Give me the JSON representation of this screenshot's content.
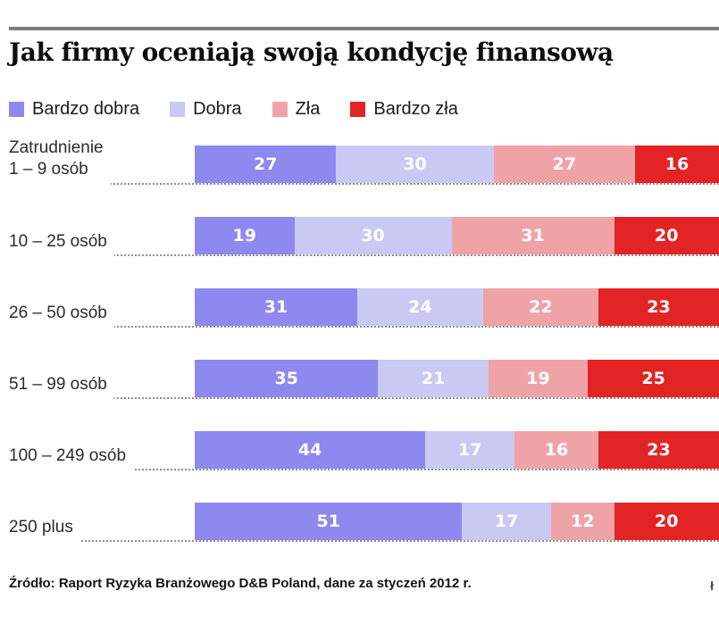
{
  "page": {
    "title": "Jak firmy oceniają swoją kondycję finansową",
    "source": "Źródło: Raport Ryzyka Branżowego D&B Poland, dane za styczeń 2012 r.",
    "watermark": "ł"
  },
  "chart_data": {
    "type": "bar",
    "orientation": "horizontal-stacked",
    "title": "Jak firmy oceniają swoją kondycję finansową",
    "legend_position": "top",
    "xlim": [
      0,
      100
    ],
    "grid": false,
    "categories": [
      "Zatrudnienie 1 – 9 osób",
      "10 – 25 osób",
      "26 – 50 osób",
      "51 – 99 osób",
      "100 – 249 osób",
      "250 plus"
    ],
    "category_lines": [
      [
        "Zatrudnienie",
        "1 – 9 osób"
      ],
      [
        "10 – 25 osób"
      ],
      [
        "26 – 50 osób"
      ],
      [
        "51 – 99 osób"
      ],
      [
        "100 – 249 osób"
      ],
      [
        "250 plus"
      ]
    ],
    "series": [
      {
        "name": "Bardzo dobra",
        "color": "#8f88ef",
        "values": [
          27,
          19,
          31,
          35,
          44,
          51
        ]
      },
      {
        "name": "Dobra",
        "color": "#c9c9f4",
        "values": [
          30,
          30,
          24,
          21,
          17,
          17
        ]
      },
      {
        "name": "Zła",
        "color": "#f0a3a7",
        "values": [
          27,
          31,
          22,
          19,
          16,
          12
        ]
      },
      {
        "name": "Bardzo zła",
        "color": "#e32424",
        "values": [
          16,
          20,
          23,
          25,
          23,
          20
        ]
      }
    ]
  }
}
